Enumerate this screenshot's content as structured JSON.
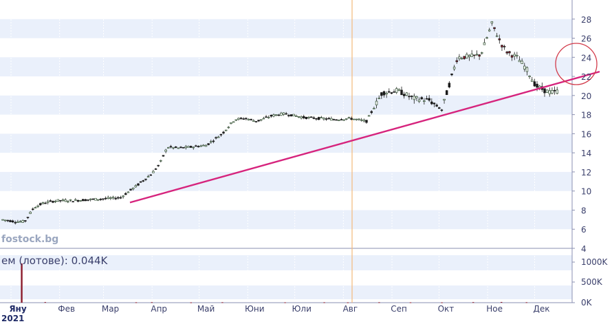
{
  "watermark": "fostock.bg",
  "volume_label": "ем (лотове): 0.044K",
  "year_label": "2021",
  "colors": {
    "band": "#eaf0fb",
    "axis_text": "#3a3f6b",
    "trendline": "#d6247d",
    "circle": "#d23a4a",
    "marker": "#f4b97a",
    "up_candle": "#2f4f2f",
    "down_candle": "#8b1a2a",
    "volume_bar": "#8b1a2a"
  },
  "chart_data": [
    {
      "type": "candlestick",
      "title": "",
      "months": [
        "Яну",
        "Фев",
        "Мар",
        "Апр",
        "Май",
        "Юни",
        "Юли",
        "Авг",
        "Сеп",
        "Окт",
        "Ное",
        "Дек"
      ],
      "y_ticks": [
        4,
        6,
        8,
        10,
        12,
        14,
        16,
        18,
        20,
        22,
        24,
        26,
        28
      ],
      "ylim": [
        4,
        30
      ],
      "grid": true,
      "x_range_days": [
        0,
        355
      ],
      "approx_close": {
        "x": [
          0,
          8,
          14,
          20,
          27,
          35,
          45,
          55,
          65,
          75,
          85,
          95,
          100,
          105,
          112,
          120,
          130,
          140,
          148,
          155,
          162,
          172,
          180,
          192,
          202,
          212,
          222,
          232,
          242,
          252,
          262,
          272,
          280,
          290,
          300,
          305,
          312,
          318,
          322,
          328,
          334,
          340,
          346,
          350,
          355
        ],
        "close": [
          7.0,
          6.8,
          6.8,
          8.3,
          8.8,
          9.0,
          9.0,
          9.1,
          9.2,
          9.3,
          10.5,
          11.8,
          12.8,
          14.6,
          14.5,
          14.6,
          14.8,
          16.0,
          17.5,
          17.6,
          17.3,
          17.9,
          18.1,
          17.7,
          17.6,
          17.5,
          17.6,
          17.3,
          20.3,
          20.5,
          19.7,
          19.5,
          18.5,
          24.0,
          24.1,
          24.3,
          27.5,
          25.4,
          24.5,
          24.0,
          22.8,
          21.0,
          20.5,
          20.3,
          20.5
        ]
      },
      "trendline": {
        "x": [
          100,
          465
        ],
        "y": [
          8.8,
          22.5
        ]
      },
      "vertical_marker_x": 278,
      "highlight_circle": {
        "x": 448,
        "y": 23.3
      }
    },
    {
      "type": "bar",
      "title": "",
      "series": [
        {
          "name": "ем (лотове)",
          "values": []
        }
      ],
      "y_ticks": [
        "1000K",
        "500K",
        "0K"
      ],
      "ylim": [
        0,
        1000000
      ],
      "volume_x": [
        12,
        27,
        85,
        95,
        120,
        140,
        180,
        205,
        220,
        240,
        260,
        280,
        300,
        318,
        334
      ],
      "volume_values": [
        780000,
        12000,
        8000,
        10000,
        6000,
        9000,
        7000,
        8000,
        6000,
        9000,
        7000,
        6000,
        11000,
        14000,
        9000
      ]
    }
  ]
}
